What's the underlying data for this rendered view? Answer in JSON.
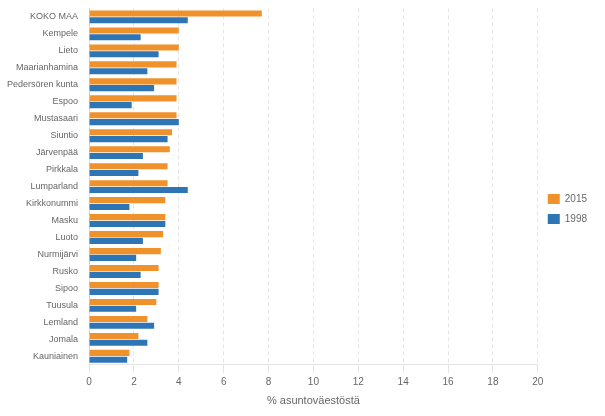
{
  "chart_data": {
    "type": "bar",
    "orientation": "horizontal",
    "categories": [
      "KOKO MAA",
      "Kempele",
      "Lieto",
      "Maarianhamina",
      "Pedersören kunta",
      "Espoo",
      "Mustasaari",
      "Siuntio",
      "Järvenpää",
      "Pirkkala",
      "Lumparland",
      "Kirkkonummi",
      "Masku",
      "Luoto",
      "Nurmijärvi",
      "Rusko",
      "Sipoo",
      "Tuusula",
      "Lemland",
      "Jomala",
      "Kauniainen"
    ],
    "series": [
      {
        "name": "2015",
        "color": "#F0922B",
        "values": [
          7.7,
          4.0,
          4.0,
          3.9,
          3.9,
          3.9,
          3.9,
          3.7,
          3.6,
          3.5,
          3.5,
          3.4,
          3.4,
          3.3,
          3.2,
          3.1,
          3.1,
          3.0,
          2.6,
          2.2,
          1.8
        ]
      },
      {
        "name": "1998",
        "color": "#2E75B6",
        "values": [
          4.4,
          2.3,
          3.1,
          2.6,
          2.9,
          1.9,
          4.0,
          3.5,
          2.4,
          2.2,
          4.4,
          1.8,
          3.4,
          2.4,
          2.1,
          2.3,
          3.1,
          2.1,
          2.9,
          2.6,
          1.7
        ]
      }
    ],
    "xlabel": "% asuntoväestöstä",
    "xlim": [
      0,
      20
    ],
    "xticks": [
      0,
      2,
      4,
      6,
      8,
      10,
      12,
      14,
      16,
      18,
      20
    ],
    "grid": true,
    "legend": "right"
  }
}
